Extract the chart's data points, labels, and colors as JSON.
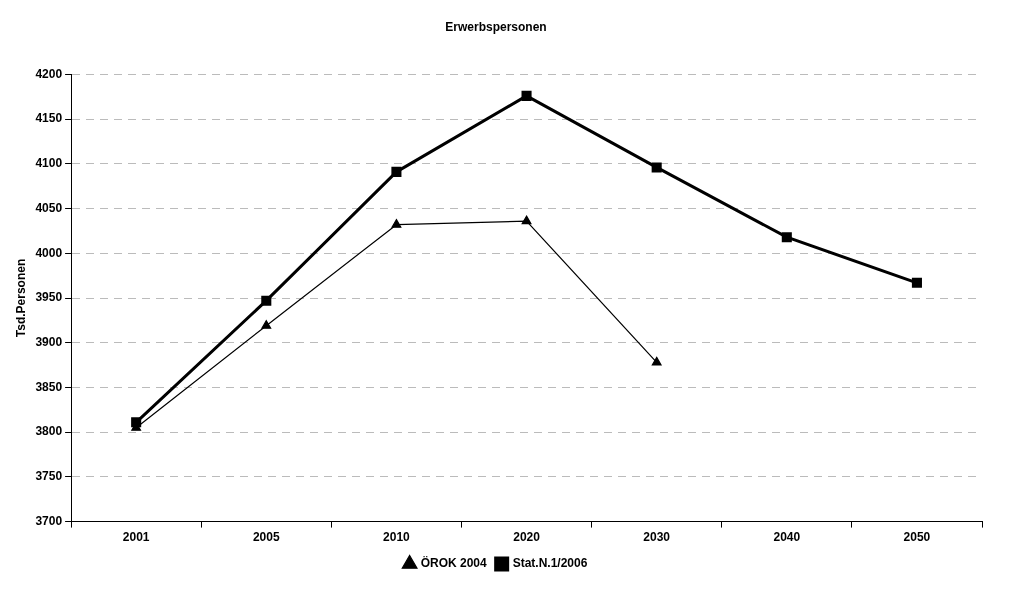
{
  "chart_data": {
    "type": "line",
    "title": "Erwerbspersonen",
    "ylabel": "Tsd.Personen",
    "categories": [
      "2001",
      "2005",
      "2010",
      "2020",
      "2030",
      "2040",
      "2050"
    ],
    "series": [
      {
        "name": "ÖROK 2004",
        "color": "#000000",
        "marker": "triangle",
        "values": [
          3805,
          3919,
          4032,
          4036,
          3878,
          null,
          null
        ]
      },
      {
        "name": "Stat.N.1/2006",
        "color": "#000000",
        "marker": "square",
        "values": [
          3811,
          3947,
          4091,
          4176,
          4096,
          4018,
          3967
        ]
      }
    ],
    "ylim": [
      3700,
      4200
    ],
    "yticks": [
      3700,
      3750,
      3800,
      3850,
      3900,
      3950,
      4000,
      4050,
      4100,
      4150,
      4200
    ],
    "grid": "y",
    "legend": "bottom",
    "line_style": "solid"
  }
}
